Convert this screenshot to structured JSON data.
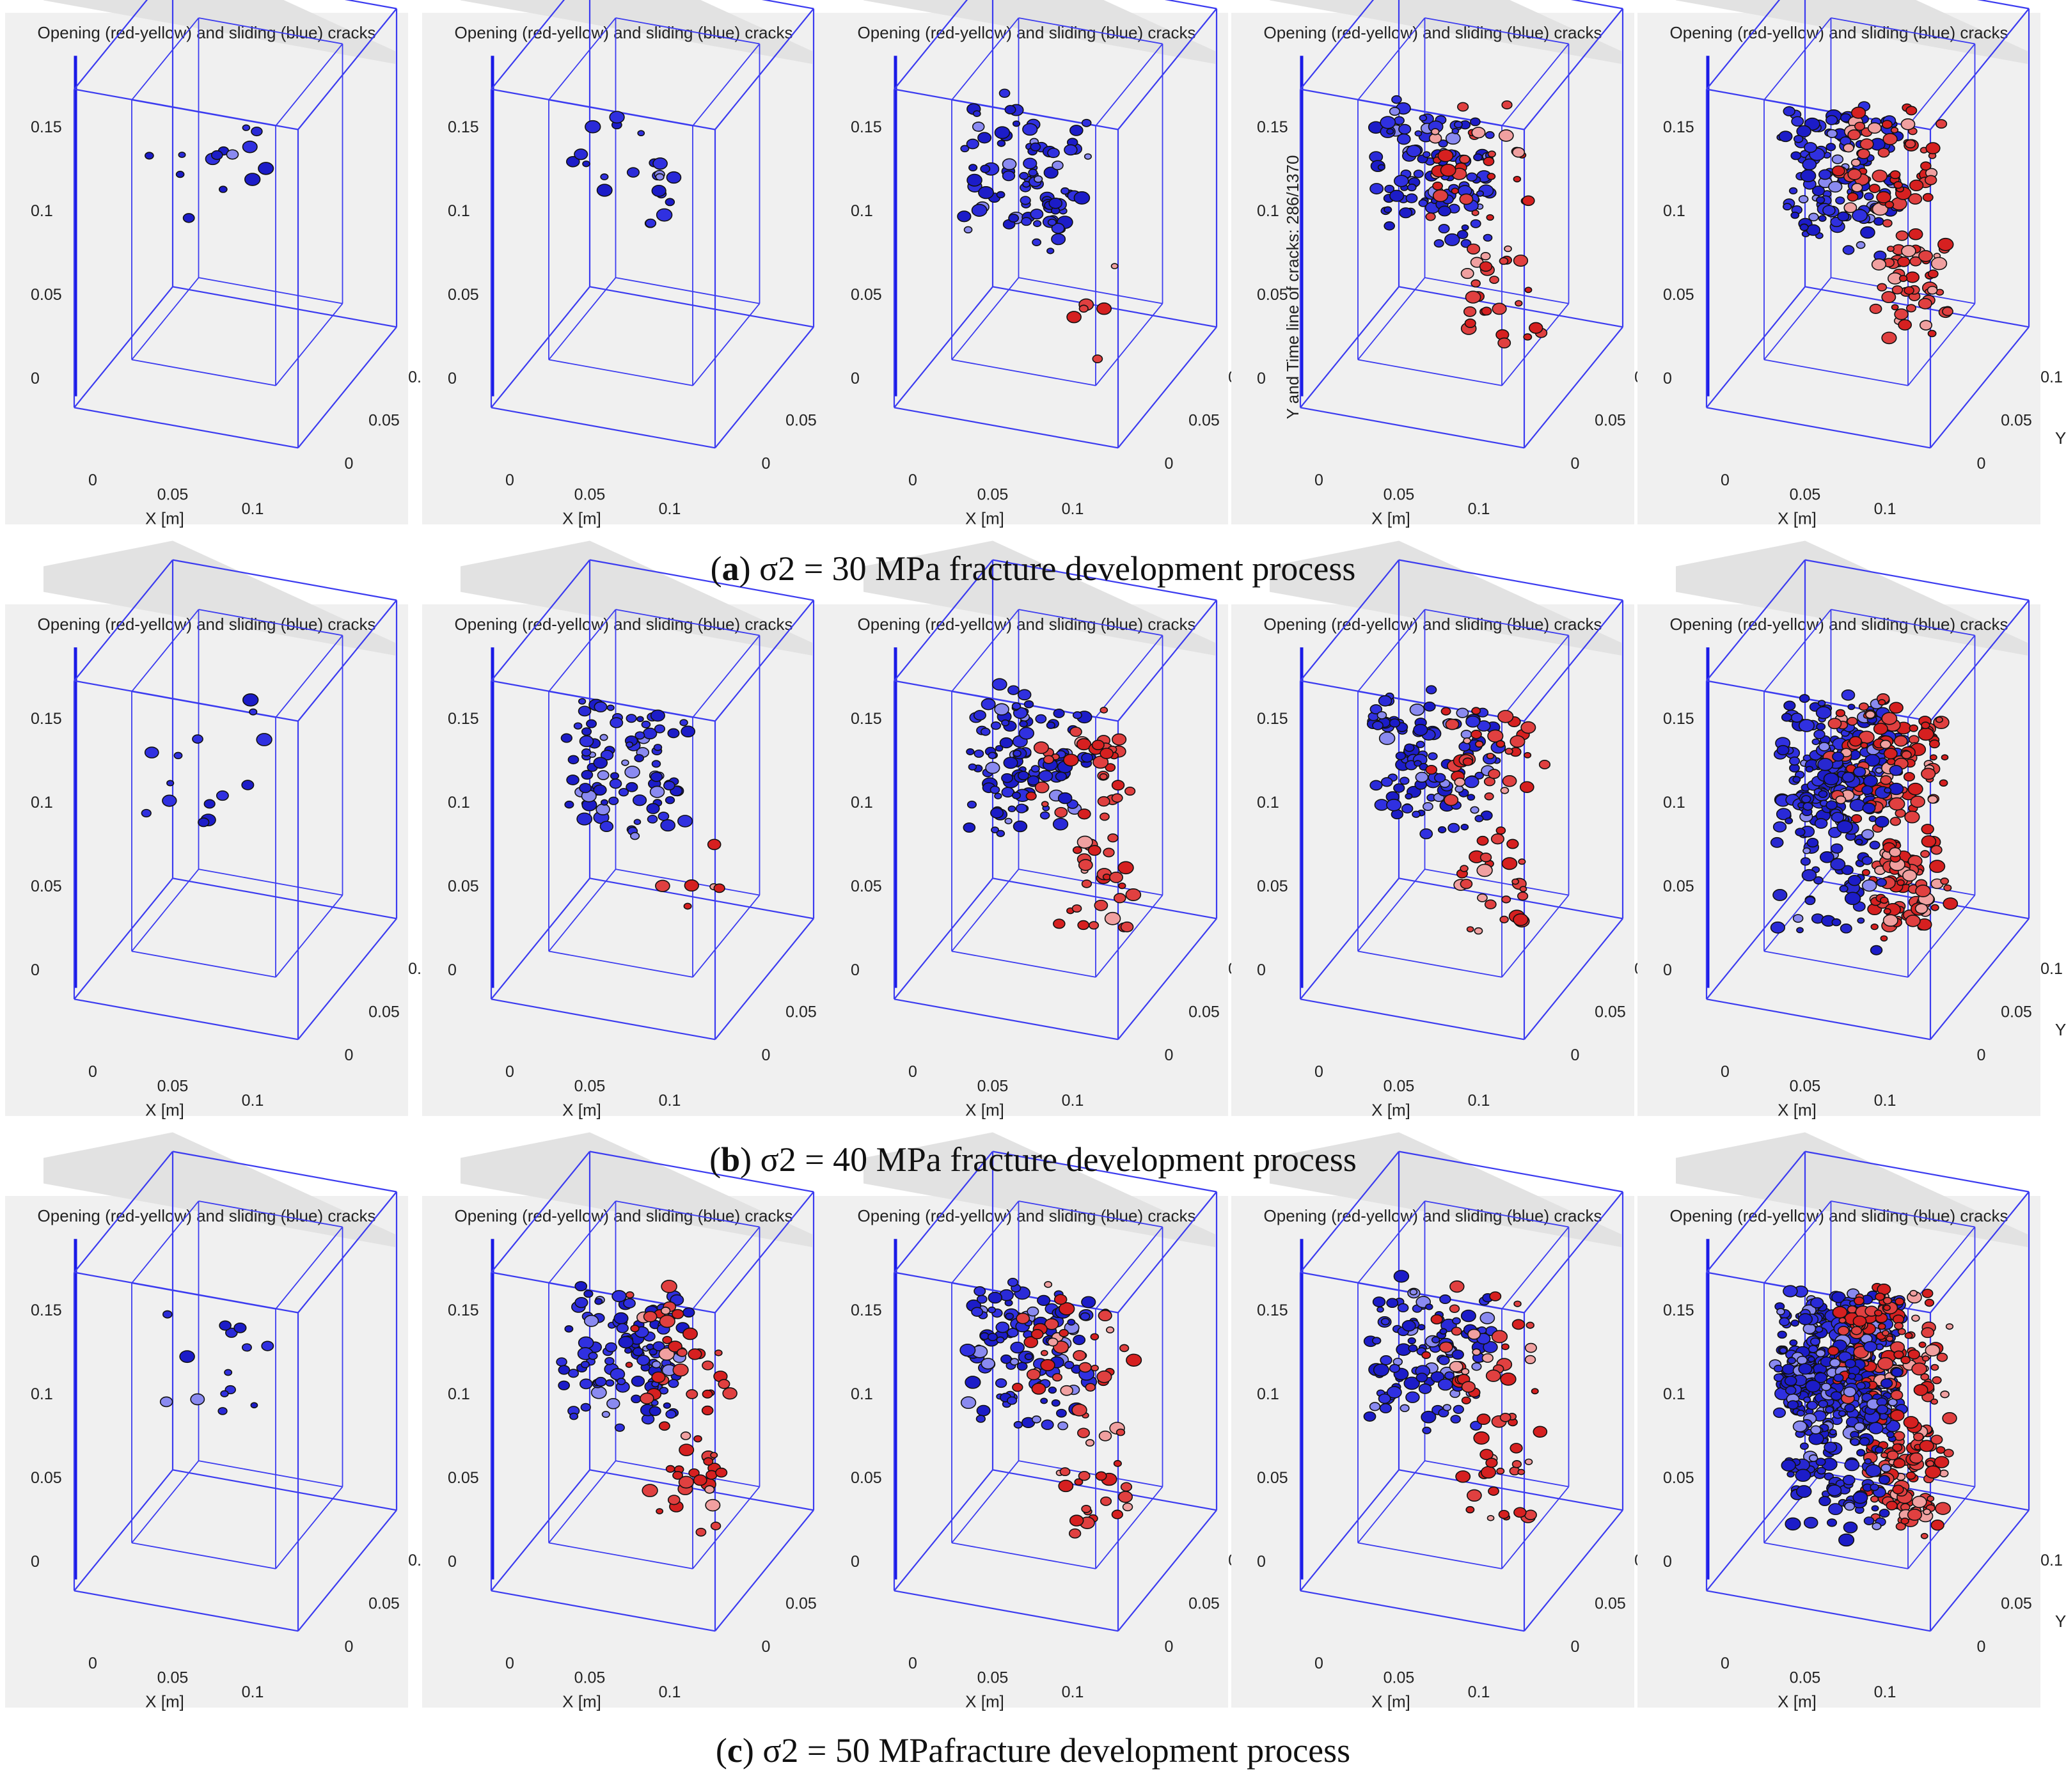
{
  "figure": {
    "rows": [
      {
        "label": "a",
        "caption": "σ2 = 30 MPa fracture development process",
        "panels": [
          {
            "title": "Opening (red-yellow) and sliding (blue) cracks",
            "zlabel": "",
            "stage": 1
          },
          {
            "title": "Opening (red-yellow) and sliding (blue) cracks",
            "zlabel": "",
            "stage": 2
          },
          {
            "title": "Opening (red-yellow) and sliding (blue) cracks",
            "zlabel": "",
            "stage": 3
          },
          {
            "title": "Opening (red-yellow) and sliding (blue) cracks",
            "zlabel": "Y and Time line of cracks: 286/1370",
            "stage": 4
          },
          {
            "title": "Opening (red-yellow) and sliding (blue) cracks",
            "zlabel": "",
            "stage": 5
          }
        ]
      },
      {
        "label": "b",
        "caption": "σ2 = 40 MPa fracture development process",
        "panels": [
          {
            "title": "Opening (red-yellow) and sliding (blue) cracks",
            "zlabel": "",
            "stage": 1
          },
          {
            "title": "Opening (red-yellow) and sliding (blue) cracks",
            "zlabel": "",
            "stage": 3
          },
          {
            "title": "Opening (red-yellow) and sliding (blue) cracks",
            "zlabel": "",
            "stage": 4
          },
          {
            "title": "Opening (red-yellow) and sliding (blue) cracks",
            "zlabel": "",
            "stage": 4
          },
          {
            "title": "Opening (red-yellow) and sliding (blue) cracks",
            "zlabel": "",
            "stage": 6
          }
        ]
      },
      {
        "label": "c",
        "caption": "σ2 = 50 MPafracture development process",
        "panels": [
          {
            "title": "Opening (red-yellow) and sliding (blue) cracks",
            "zlabel": "",
            "stage": 1
          },
          {
            "title": "Opening (red-yellow) and sliding (blue) cracks",
            "zlabel": "",
            "stage": 4
          },
          {
            "title": "Opening (red-yellow) and sliding (blue) cracks",
            "zlabel": "",
            "stage": 4
          },
          {
            "title": "Opening (red-yellow) and sliding (blue) cracks",
            "zlabel": "",
            "stage": 4
          },
          {
            "title": "Opening (red-yellow) and sliding (blue) cracks",
            "zlabel": "",
            "stage": 7
          }
        ]
      }
    ]
  },
  "chart_data": {
    "type": "scatter",
    "title": "Opening (red-yellow) and sliding (blue) cracks",
    "xlabel": "X [m]",
    "ylabel": "Y [m]",
    "z_ticks": [
      "0",
      "0.05",
      "0.1",
      "0.15"
    ],
    "x_ticks": [
      "0",
      "0.05",
      "0.1"
    ],
    "y_ticks": [
      "0",
      "0.05",
      "0.1"
    ],
    "xlim": [
      0,
      0.1
    ],
    "ylim": [
      0,
      0.1
    ],
    "zlim": [
      0,
      0.15
    ],
    "series": [
      {
        "name": "Opening (red-yellow) cracks",
        "color": "#d62020"
      },
      {
        "name": "Sliding (blue) cracks",
        "color": "#1c1cc8"
      }
    ]
  },
  "colors": {
    "box": "#3b3bf0",
    "zaxis": "#1a1ae6",
    "sliding": "#1c1cc8",
    "opening": "#d62020",
    "panel_bg": "#f0f0f0"
  }
}
